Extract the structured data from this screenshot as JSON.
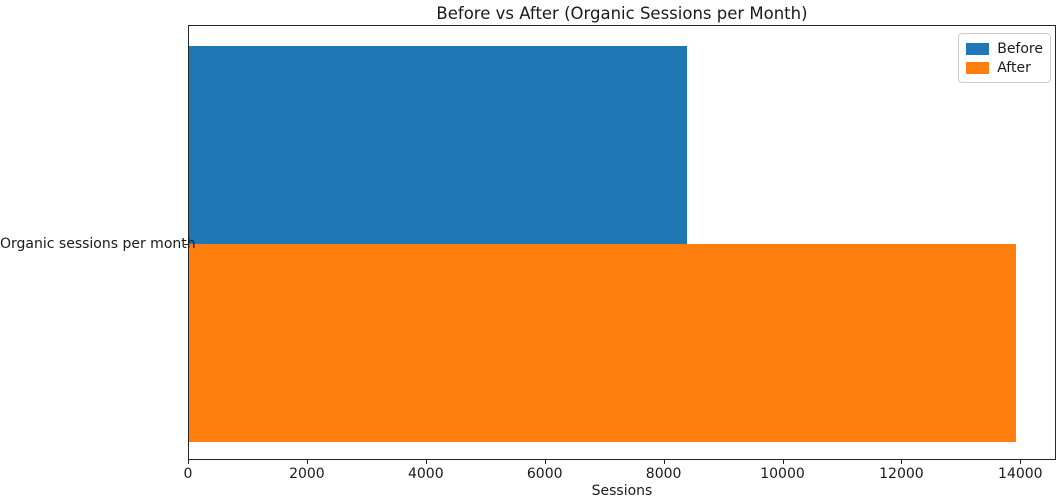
{
  "chart_data": {
    "type": "bar",
    "orientation": "horizontal",
    "title": "Before vs After (Organic Sessions per Month)",
    "xlabel": "Sessions",
    "ylabel": "",
    "categories": [
      "Organic sessions per month"
    ],
    "series": [
      {
        "name": "Before",
        "values": [
          8400
        ],
        "color": "#1f77b4"
      },
      {
        "name": "After",
        "values": [
          13950
        ],
        "color": "#ff7f0e"
      }
    ],
    "xticks": [
      0,
      2000,
      4000,
      6000,
      8000,
      10000,
      12000,
      14000
    ],
    "xlim": [
      0,
      14600
    ],
    "grid": false,
    "legend_position": "upper right"
  }
}
